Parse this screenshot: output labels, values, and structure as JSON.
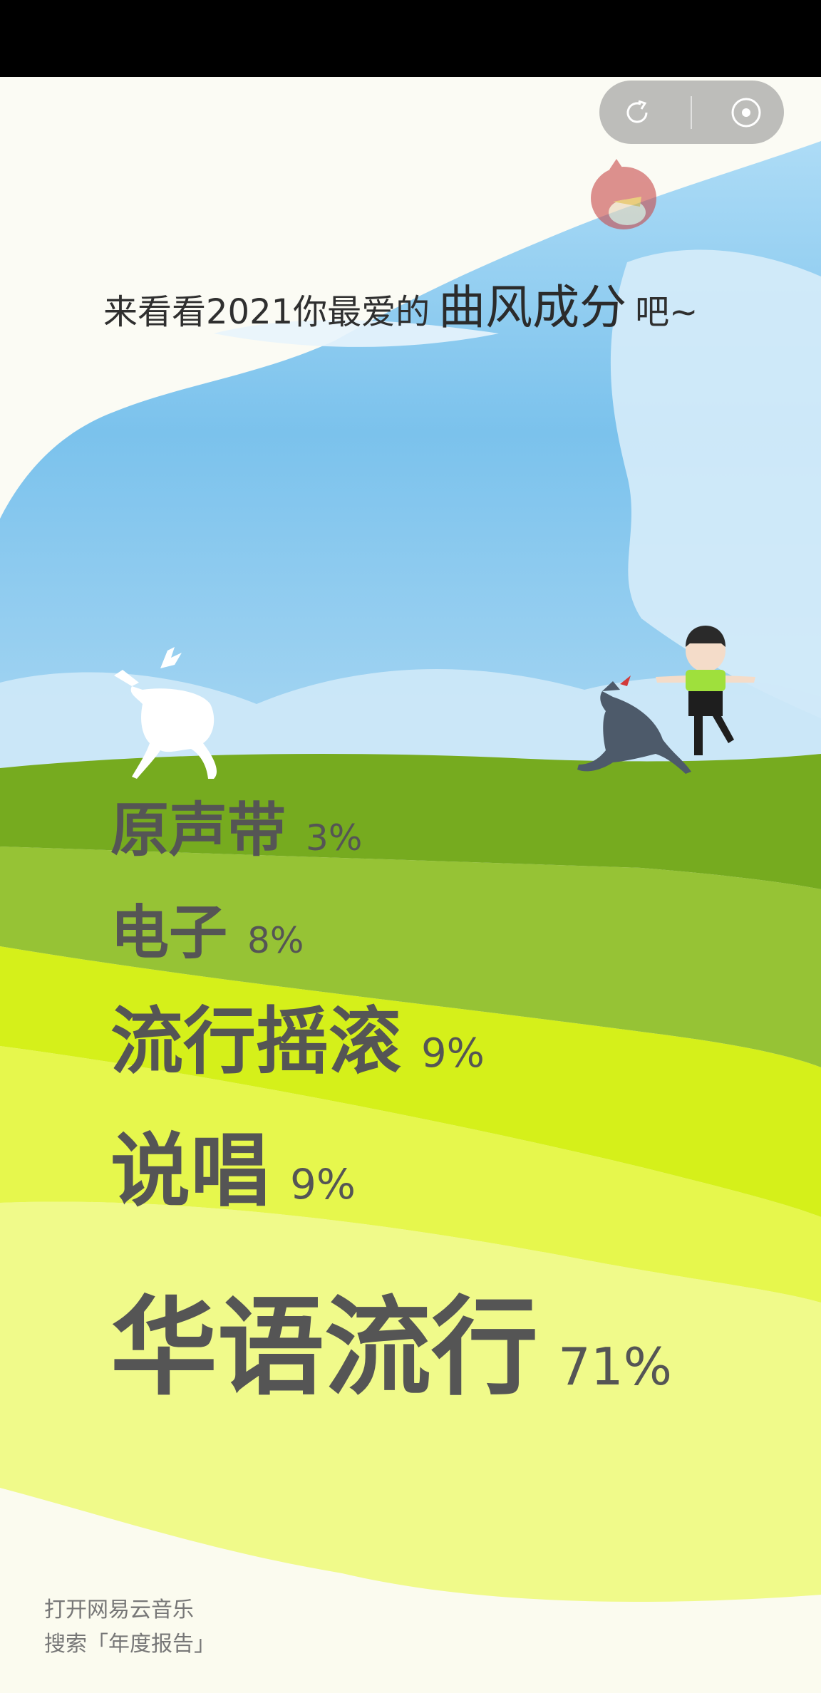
{
  "heading": {
    "before": "来看看2021你最爱的",
    "highlight": "曲风成分",
    "after": "吧~"
  },
  "genres": [
    {
      "name": "原声带",
      "percent": "3%"
    },
    {
      "name": "电子",
      "percent": "8%"
    },
    {
      "name": "流行摇滚",
      "percent": "9%"
    },
    {
      "name": "说唱",
      "percent": "9%"
    },
    {
      "name": "华语流行",
      "percent": "71%"
    }
  ],
  "footer": {
    "line1": "打开网易云音乐",
    "line2": "搜索「年度报告」"
  },
  "capsule": {
    "left_icon": "share-icon",
    "right_icon": "close-target-icon"
  },
  "colors": {
    "sky": "#7cc3ee",
    "band1": "#76ab1f",
    "band2": "#96c335",
    "band3": "#d5f01a",
    "band4": "#e6f74d",
    "band5": "#f0fa8a"
  }
}
